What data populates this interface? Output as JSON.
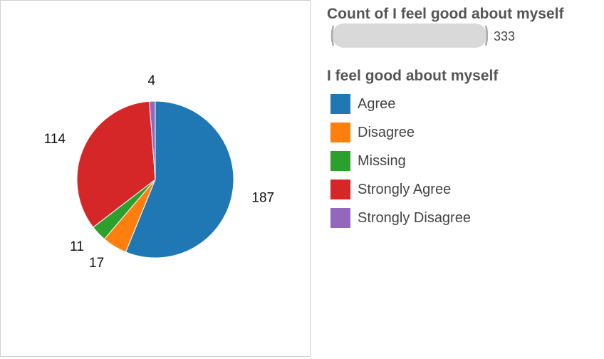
{
  "chart_data": {
    "type": "pie",
    "title": "",
    "categories": [
      "Agree",
      "Disagree",
      "Missing",
      "Strongly Agree",
      "Strongly Disagree"
    ],
    "values": [
      187,
      17,
      11,
      114,
      4
    ],
    "colors": [
      "#1f77b4",
      "#ff7f0e",
      "#2ca02c",
      "#d62728",
      "#9467bd"
    ],
    "data_labels": [
      "187",
      "17",
      "11",
      "114",
      "4"
    ]
  },
  "size_legend": {
    "title": "Count of I feel good about myself",
    "value": "333"
  },
  "legend": {
    "title": "I feel good about myself",
    "items": [
      {
        "label": "Agree",
        "color": "#1f77b4"
      },
      {
        "label": "Disagree",
        "color": "#ff7f0e"
      },
      {
        "label": "Missing",
        "color": "#2ca02c"
      },
      {
        "label": "Strongly Agree",
        "color": "#d62728"
      },
      {
        "label": "Strongly Disagree",
        "color": "#9467bd"
      }
    ]
  }
}
